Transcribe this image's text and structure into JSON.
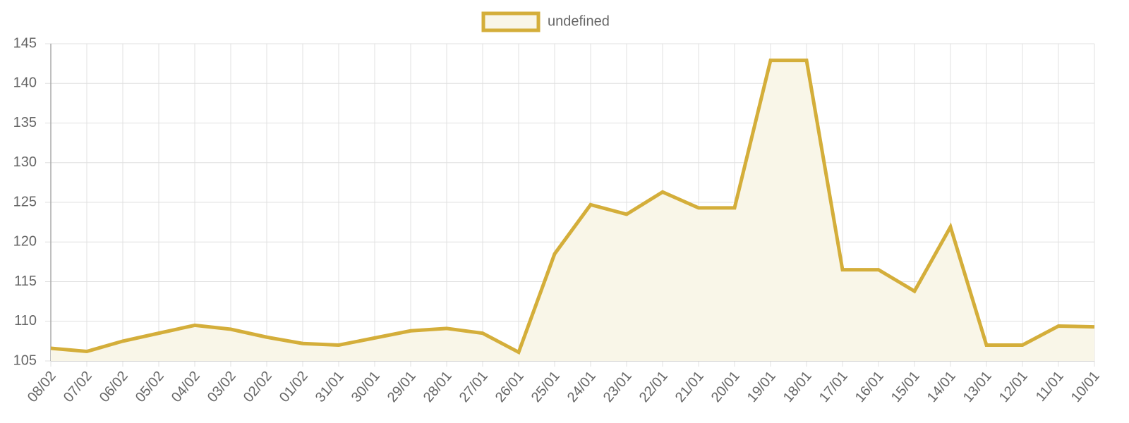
{
  "chart_data": {
    "type": "line",
    "categories": [
      "08/02",
      "07/02",
      "06/02",
      "05/02",
      "04/02",
      "03/02",
      "02/02",
      "01/02",
      "31/01",
      "30/01",
      "29/01",
      "28/01",
      "27/01",
      "26/01",
      "25/01",
      "24/01",
      "23/01",
      "22/01",
      "21/01",
      "20/01",
      "19/01",
      "18/01",
      "17/01",
      "16/01",
      "15/01",
      "14/01",
      "13/01",
      "12/01",
      "11/01",
      "10/01"
    ],
    "series": [
      {
        "name": "undefined",
        "color": "#d4ae3a",
        "fill_color": "#f9f6e8",
        "values": [
          106.6,
          106.2,
          107.5,
          108.5,
          109.5,
          109.0,
          108.0,
          107.2,
          107.0,
          107.9,
          108.8,
          109.1,
          108.5,
          106.1,
          118.5,
          124.7,
          123.5,
          126.3,
          124.3,
          124.3,
          142.9,
          142.9,
          116.5,
          116.5,
          113.8,
          121.9,
          107.0,
          107.0,
          109.4,
          109.3
        ]
      }
    ],
    "ylim": [
      105,
      145
    ],
    "yticks": [
      105,
      110,
      115,
      120,
      125,
      130,
      135,
      140,
      145
    ],
    "grid": true,
    "legend": "top"
  }
}
